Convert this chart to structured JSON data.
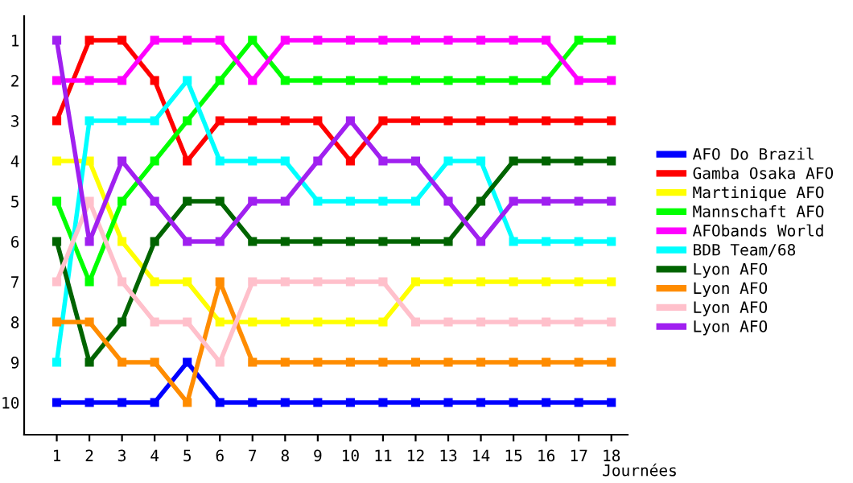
{
  "chart_data": {
    "type": "line",
    "xlabel": "Journées",
    "x": [
      1,
      2,
      3,
      4,
      5,
      6,
      7,
      8,
      9,
      10,
      11,
      12,
      13,
      14,
      15,
      16,
      17,
      18
    ],
    "xlim": [
      0,
      18.5
    ],
    "xticks": [
      1,
      2,
      3,
      4,
      5,
      6,
      7,
      8,
      9,
      10,
      11,
      12,
      13,
      14,
      15,
      16,
      17,
      18
    ],
    "ylim": [
      10.8,
      0.4
    ],
    "yticks": [
      1,
      2,
      3,
      4,
      5,
      6,
      7,
      8,
      9,
      10
    ],
    "marker": "square",
    "grid": false,
    "legend": "right",
    "series": [
      {
        "name": "AFO Do Brazil",
        "color": "#0000ff",
        "values": [
          10,
          10,
          10,
          10,
          9,
          10,
          10,
          10,
          10,
          10,
          10,
          10,
          10,
          10,
          10,
          10,
          10,
          10
        ]
      },
      {
        "name": "Gamba Osaka AFO",
        "color": "#ff0000",
        "values": [
          3,
          1,
          1,
          2,
          4,
          3,
          3,
          3,
          3,
          4,
          3,
          3,
          3,
          3,
          3,
          3,
          3,
          3
        ]
      },
      {
        "name": "Martinique AFO",
        "color": "#ffff00",
        "values": [
          4,
          4,
          6,
          7,
          7,
          8,
          8,
          8,
          8,
          8,
          8,
          7,
          7,
          7,
          7,
          7,
          7,
          7
        ]
      },
      {
        "name": "Mannschaft AFO",
        "color": "#00ff00",
        "values": [
          5,
          7,
          5,
          4,
          3,
          2,
          1,
          2,
          2,
          2,
          2,
          2,
          2,
          2,
          2,
          2,
          1,
          1
        ]
      },
      {
        "name": "AFObands World",
        "color": "#ff00ff",
        "values": [
          2,
          2,
          2,
          1,
          1,
          1,
          2,
          1,
          1,
          1,
          1,
          1,
          1,
          1,
          1,
          1,
          2,
          2
        ]
      },
      {
        "name": "BDB Team/68",
        "color": "#00ffff",
        "values": [
          9,
          3,
          3,
          3,
          2,
          4,
          4,
          4,
          5,
          5,
          5,
          5,
          4,
          4,
          6,
          6,
          6,
          6
        ]
      },
      {
        "name": "Lyon AFO",
        "color": "#006400",
        "values": [
          6,
          9,
          8,
          6,
          5,
          5,
          6,
          6,
          6,
          6,
          6,
          6,
          6,
          5,
          4,
          4,
          4,
          4
        ]
      },
      {
        "name": "Lyon AFO",
        "color": "#ff8c00",
        "values": [
          8,
          8,
          9,
          9,
          10,
          7,
          9,
          9,
          9,
          9,
          9,
          9,
          9,
          9,
          9,
          9,
          9,
          9
        ]
      },
      {
        "name": "Lyon AFO",
        "color": "#ffc0cb",
        "values": [
          7,
          5,
          7,
          8,
          8,
          9,
          7,
          7,
          7,
          7,
          7,
          8,
          8,
          8,
          8,
          8,
          8,
          8
        ]
      },
      {
        "name": "Lyon AFO",
        "color": "#a020f0",
        "values": [
          1,
          6,
          4,
          5,
          6,
          6,
          5,
          5,
          4,
          3,
          4,
          4,
          5,
          6,
          5,
          5,
          5,
          5
        ]
      }
    ]
  }
}
